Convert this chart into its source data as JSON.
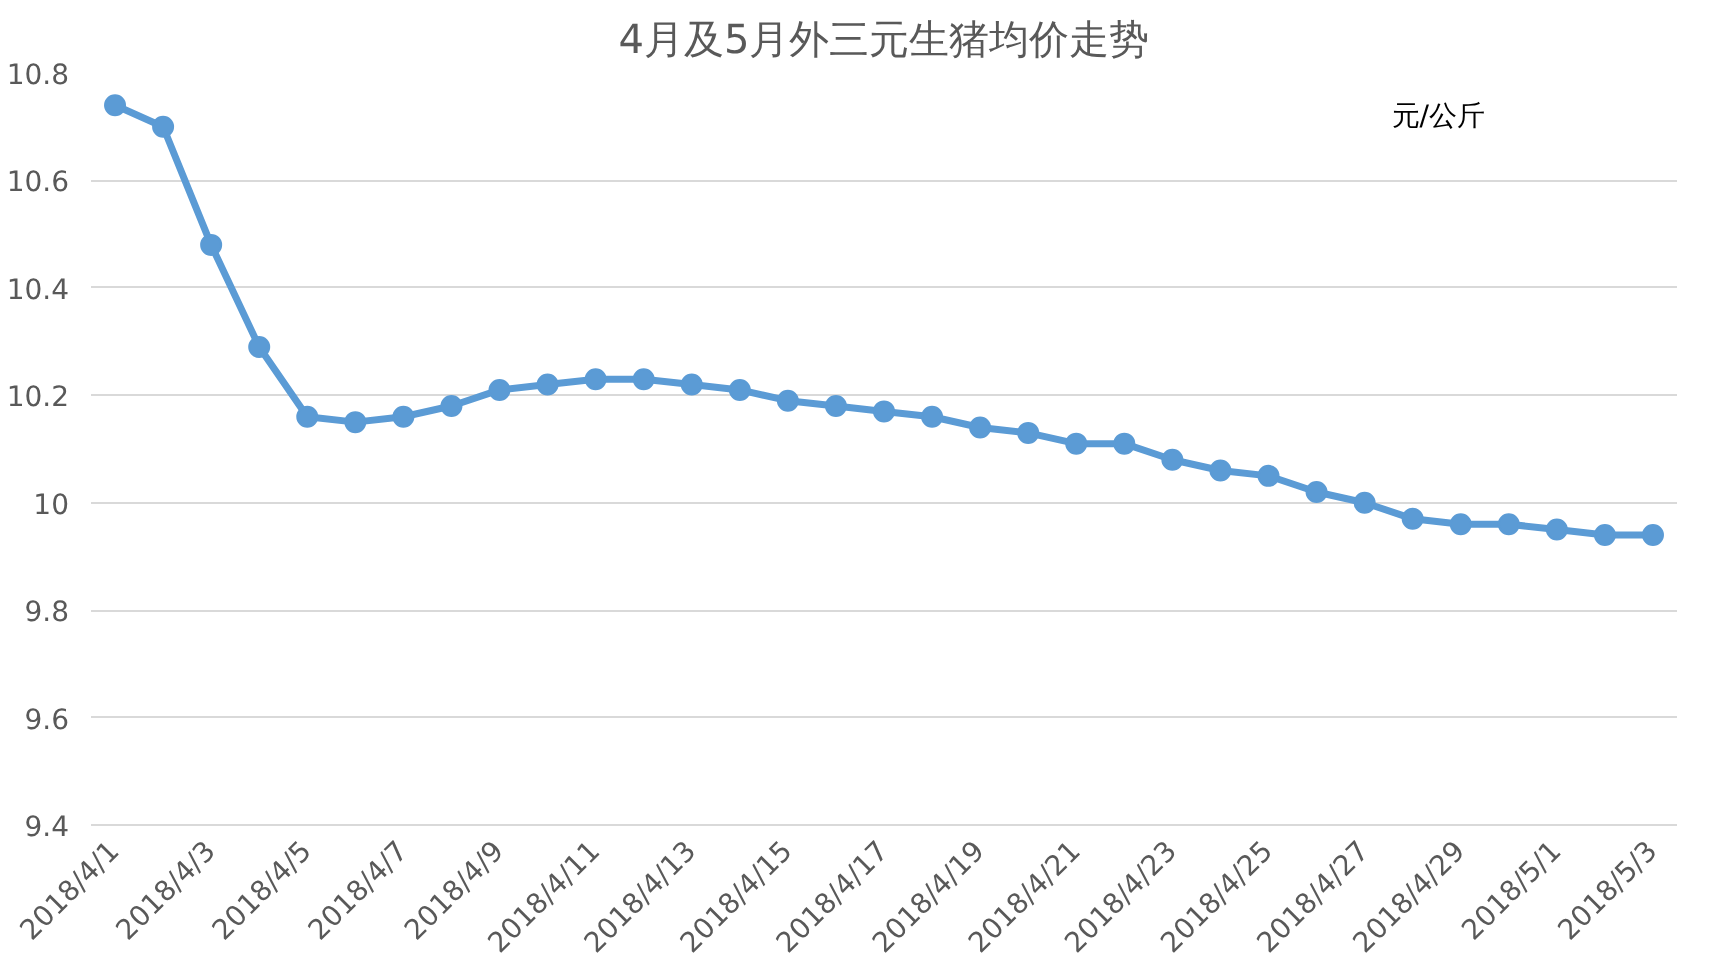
{
  "chart_data": {
    "type": "line",
    "title": "4月及5月外三元生猪均价走势",
    "annotations": [
      "元/公斤"
    ],
    "x": [
      "2018-04-01",
      "2018-04-02",
      "2018-04-03",
      "2018-04-04",
      "2018-04-05",
      "2018-04-06",
      "2018-04-07",
      "2018-04-08",
      "2018-04-09",
      "2018-04-10",
      "2018-04-11",
      "2018-04-12",
      "2018-04-13",
      "2018-04-14",
      "2018-04-15",
      "2018-04-16",
      "2018-04-17",
      "2018-04-18",
      "2018-04-19",
      "2018-04-20",
      "2018-04-21",
      "2018-04-22",
      "2018-04-23",
      "2018-04-24",
      "2018-04-25",
      "2018-04-26",
      "2018-04-27",
      "2018-04-28",
      "2018-04-29",
      "2018-04-30",
      "2018-05-01",
      "2018-05-02",
      "2018-05-03"
    ],
    "series": [
      {
        "color": "#5b9bd5",
        "values": [
          10.74,
          10.7,
          10.48,
          10.29,
          10.16,
          10.15,
          10.16,
          10.18,
          10.21,
          10.22,
          10.23,
          10.23,
          10.22,
          10.21,
          10.19,
          10.18,
          10.17,
          10.16,
          10.14,
          10.13,
          10.11,
          10.11,
          10.08,
          10.06,
          10.05,
          10.02,
          10.0,
          9.97,
          9.96,
          9.96,
          9.95,
          9.94,
          9.94
        ]
      }
    ],
    "xlim": [
      "2018-03-31T12:00",
      "2018-05-03T12:00"
    ],
    "xticks": [
      {
        "value": "2018-04-01",
        "label": "2018/4/1"
      },
      {
        "value": "2018-04-03",
        "label": "2018/4/3"
      },
      {
        "value": "2018-04-05",
        "label": "2018/4/5"
      },
      {
        "value": "2018-04-07",
        "label": "2018/4/7"
      },
      {
        "value": "2018-04-09",
        "label": "2018/4/9"
      },
      {
        "value": "2018-04-11",
        "label": "2018/4/11"
      },
      {
        "value": "2018-04-13",
        "label": "2018/4/13"
      },
      {
        "value": "2018-04-15",
        "label": "2018/4/15"
      },
      {
        "value": "2018-04-17",
        "label": "2018/4/17"
      },
      {
        "value": "2018-04-19",
        "label": "2018/4/19"
      },
      {
        "value": "2018-04-21",
        "label": "2018/4/21"
      },
      {
        "value": "2018-04-23",
        "label": "2018/4/23"
      },
      {
        "value": "2018-04-25",
        "label": "2018/4/25"
      },
      {
        "value": "2018-04-27",
        "label": "2018/4/27"
      },
      {
        "value": "2018-04-29",
        "label": "2018/4/29"
      },
      {
        "value": "2018-05-01",
        "label": "2018/5/1"
      },
      {
        "value": "2018-05-03",
        "label": "2018/5/3"
      }
    ],
    "ylim": [
      9.4,
      10.8
    ],
    "yticks": [
      9.4,
      9.6,
      9.8,
      10,
      10.2,
      10.4,
      10.6,
      10.8
    ],
    "grid": "y",
    "marker": "circle",
    "line_style": "solid"
  }
}
